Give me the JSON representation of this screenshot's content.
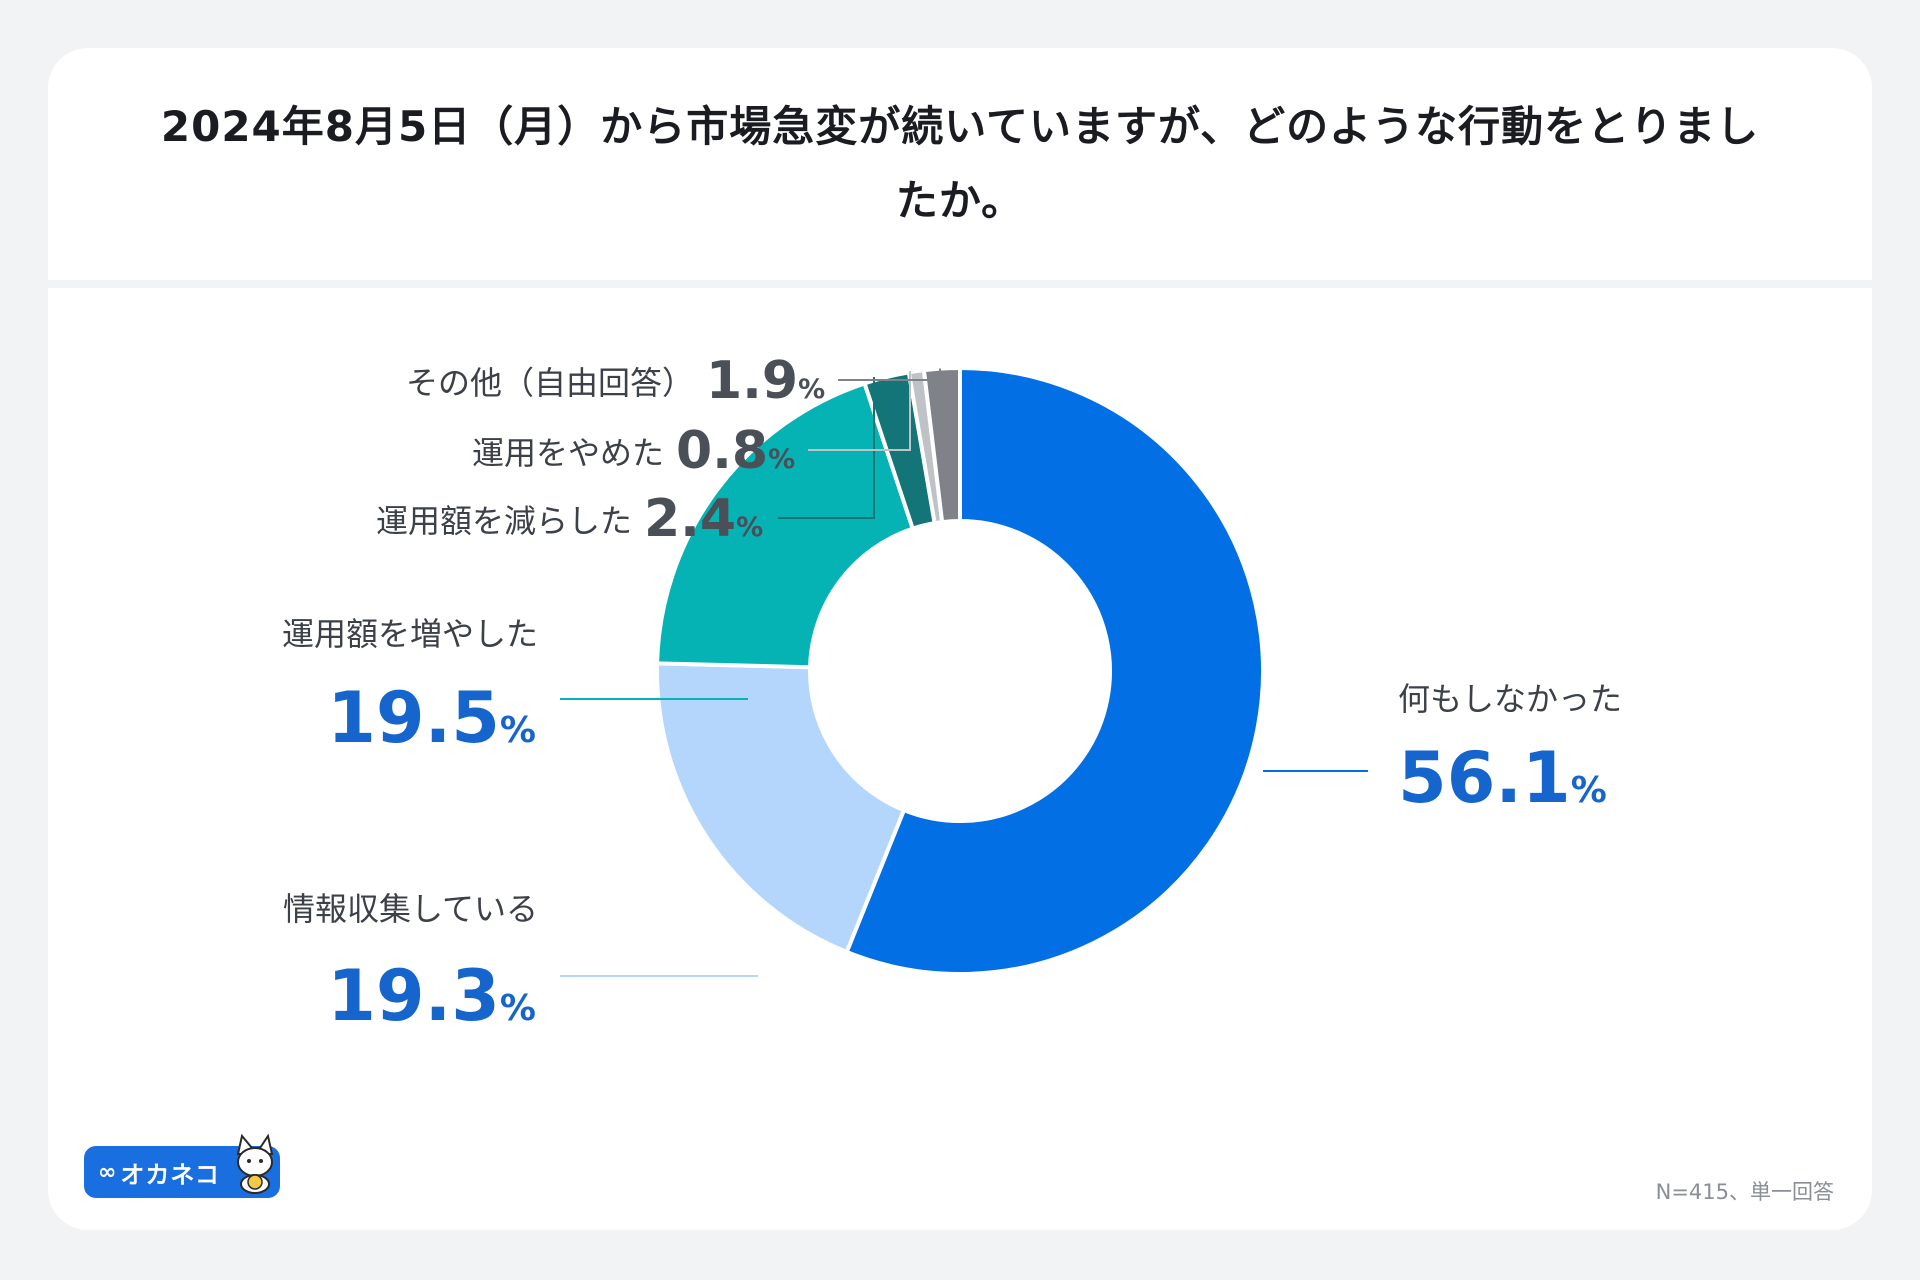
{
  "title": "2024年8月5日（月）から市場急変が続いていますが、どのような行動をとりましたか。",
  "note": "N=415、単一回答",
  "brand": {
    "name": "オカネコ",
    "icon": "cat-icon"
  },
  "colors": {
    "background": "#f2f3f5",
    "card": "#ffffff",
    "large_value": "#1565cc",
    "small_value": "#4a4f58",
    "label": "#3c4048"
  },
  "chart_data": {
    "type": "pie",
    "donut": true,
    "unit": "%",
    "slices": [
      {
        "label": "何もしなかった",
        "value": 56.1,
        "color": "#0270e4"
      },
      {
        "label": "情報収集している",
        "value": 19.3,
        "color": "#b4d6fd"
      },
      {
        "label": "運用額を増やした",
        "value": 19.5,
        "color": "#05b2b4"
      },
      {
        "label": "運用額を減らした",
        "value": 2.4,
        "color": "#137577"
      },
      {
        "label": "運用をやめた",
        "value": 0.8,
        "color": "#bfc2c7"
      },
      {
        "label": "その他（自由回答）",
        "value": 1.9,
        "color": "#7f8389"
      }
    ]
  }
}
